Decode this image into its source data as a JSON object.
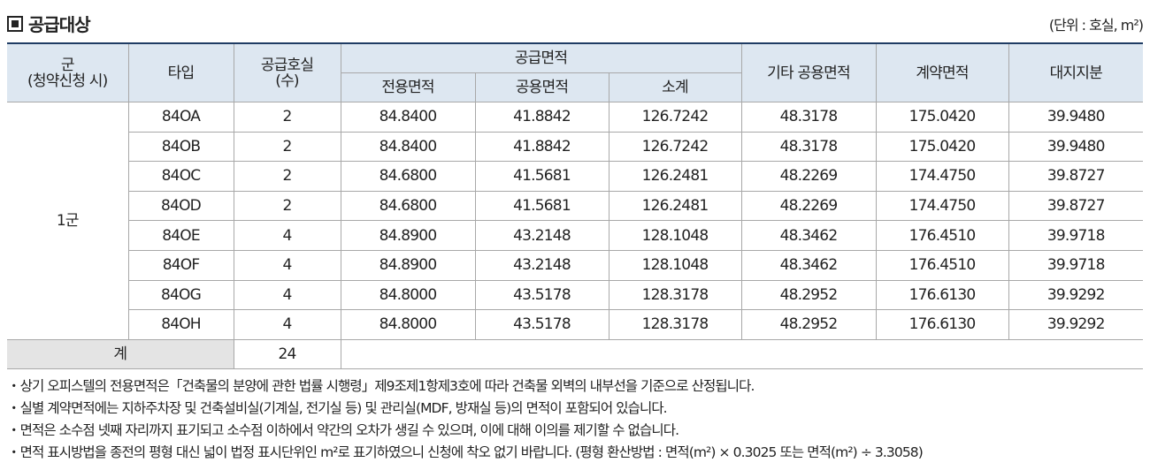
{
  "header": {
    "title": "공급대상",
    "unit": "(단위 : 호실, m²)"
  },
  "table": {
    "columns": {
      "group": [
        "군",
        "(청약신청 시)"
      ],
      "type": "타입",
      "units": [
        "공급호실",
        "(수)"
      ],
      "supply_area": "공급면적",
      "exclusive": "전용면적",
      "common": "공용면적",
      "subtotal": "소계",
      "other_common": "기타 공용면적",
      "contract": "계약면적",
      "land": "대지지분"
    },
    "group_label": "1군",
    "rows": [
      [
        "84OA",
        "2",
        "84.8400",
        "41.8842",
        "126.7242",
        "48.3178",
        "175.0420",
        "39.9480"
      ],
      [
        "84OB",
        "2",
        "84.8400",
        "41.8842",
        "126.7242",
        "48.3178",
        "175.0420",
        "39.9480"
      ],
      [
        "84OC",
        "2",
        "84.6800",
        "41.5681",
        "126.2481",
        "48.2269",
        "174.4750",
        "39.8727"
      ],
      [
        "84OD",
        "2",
        "84.6800",
        "41.5681",
        "126.2481",
        "48.2269",
        "174.4750",
        "39.8727"
      ],
      [
        "84OE",
        "4",
        "84.8900",
        "43.2148",
        "128.1048",
        "48.3462",
        "176.4510",
        "39.9718"
      ],
      [
        "84OF",
        "4",
        "84.8900",
        "43.2148",
        "128.1048",
        "48.3462",
        "176.4510",
        "39.9718"
      ],
      [
        "84OG",
        "4",
        "84.8000",
        "43.5178",
        "128.3178",
        "48.2952",
        "176.6130",
        "39.9292"
      ],
      [
        "84OH",
        "4",
        "84.8000",
        "43.5178",
        "128.3178",
        "48.2952",
        "176.6130",
        "39.9292"
      ]
    ],
    "total": {
      "label": "계",
      "units": "24"
    }
  },
  "notes": [
    "・상기 오피스텔의 전용면적은「건축물의 분양에 관한 법률 시행령」제9조제1항제3호에 따라 건축물 외벽의 내부선을 기준으로 산정됩니다.",
    "・실별 계약면적에는 지하주차장 및 건축설비실(기계실, 전기실 등) 및 관리실(MDF, 방재실 등)의 면적이 포함되어 있습니다.",
    "・면적은 소수점 넷째 자리까지 표기되고 소수점 이하에서 약간의 오차가 생길 수 있으며, 이에 대해 이의를 제기할 수 없습니다.",
    "・면적 표시방법을 종전의 평형 대신 넓이 법정 표시단위인 m²로 표기하였으니 신청에 착오 없기 바랍니다. (평형 환산방법 : 면적(m²) × 0.3025 또는 면적(m²) ÷ 3.3058)"
  ]
}
